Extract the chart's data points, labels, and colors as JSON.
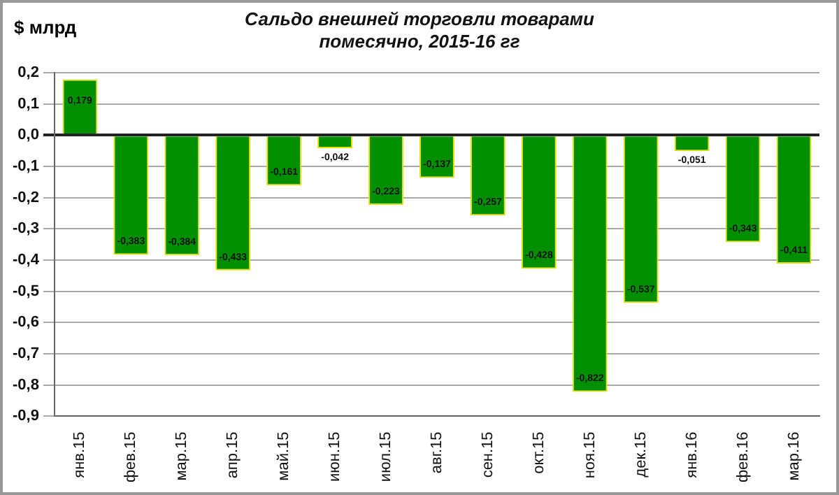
{
  "chart_data": {
    "type": "bar",
    "title": "Сальдо внешней торговли товарами",
    "subtitle": "помесячно, 2015-16 гг",
    "ylabel": "$ млрд",
    "categories": [
      "янв.15",
      "фев.15",
      "мар.15",
      "апр.15",
      "май.15",
      "июн.15",
      "июл.15",
      "авг.15",
      "сен.15",
      "окт.15",
      "ноя.15",
      "дек.15",
      "янв.16",
      "фев.16",
      "мар.16"
    ],
    "values": [
      0.179,
      -0.383,
      -0.384,
      -0.433,
      -0.161,
      -0.042,
      -0.223,
      -0.137,
      -0.257,
      -0.428,
      -0.822,
      -0.537,
      -0.051,
      -0.343,
      -0.411
    ],
    "value_labels": [
      "0,179",
      "-0,383",
      "-0,384",
      "-0,433",
      "-0,161",
      "-0,042",
      "-0,223",
      "-0,137",
      "-0,257",
      "-0,428",
      "-0,822",
      "-0,537",
      "-0,051",
      "-0,343",
      "-0,411"
    ],
    "color": "#008f00",
    "ylim": [
      -0.9,
      0.2
    ],
    "yticks": [
      {
        "value": 0.2,
        "label": "0,2"
      },
      {
        "value": 0.1,
        "label": "0,1"
      },
      {
        "value": 0,
        "label": "0,0"
      },
      {
        "value": -0.1,
        "label": "-0,1"
      },
      {
        "value": -0.2,
        "label": "-0,2"
      },
      {
        "value": -0.3,
        "label": "-0,3"
      },
      {
        "value": -0.4,
        "label": "-0,4"
      },
      {
        "value": -0.5,
        "label": "-0,5"
      },
      {
        "value": -0.6,
        "label": "-0,6"
      },
      {
        "value": -0.7,
        "label": "-0,7"
      },
      {
        "value": -0.8,
        "label": "-0,8"
      },
      {
        "value": -0.9,
        "label": "-0,9"
      }
    ],
    "grid": "y",
    "legend": false
  }
}
